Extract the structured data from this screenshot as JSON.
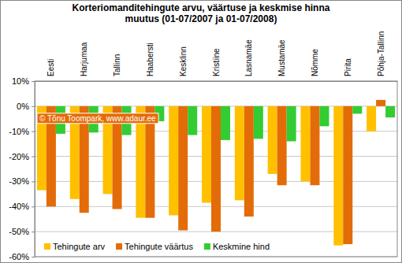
{
  "chart_data": {
    "type": "bar",
    "title": "Korteriomanditehingute arvu, väärtuse ja keskmise hinna muutus (01-07/2007 ja 01-07/2008)",
    "annotation": "© Tõnu Toompark, www.adaur.ee",
    "categories": [
      "Eesti",
      "Harjumaa",
      "Tallinn",
      "Haabersti",
      "Kesklinn",
      "Kristiine",
      "Lasnamäe",
      "Mustamäe",
      "Nõmme",
      "Pirita",
      "Põhja-Tallinn"
    ],
    "series": [
      {
        "name": "Tehingute arv",
        "color": "#ffc000",
        "values": [
          -33.5,
          -37,
          -35,
          -44.5,
          -43.5,
          -38.5,
          -37.5,
          -27,
          -30,
          -55.5,
          -10
        ]
      },
      {
        "name": "Tehingute väärtus",
        "color": "#e36c09",
        "values": [
          -40,
          -42.5,
          -41,
          -44.5,
          -49.5,
          -50,
          -44,
          -31.5,
          -31.5,
          -55,
          2.5
        ]
      },
      {
        "name": "Keskmine hind",
        "color": "#33cc33",
        "values": [
          -11,
          -10.5,
          -11.5,
          -6,
          -11.5,
          -13.5,
          -13,
          -14,
          -8,
          -3,
          -4.5
        ]
      }
    ],
    "ylim": [
      -60,
      10
    ],
    "yticks": [
      {
        "value": 10,
        "label": "10%"
      },
      {
        "value": 0,
        "label": "0%"
      },
      {
        "value": -10,
        "label": "-10%"
      },
      {
        "value": -20,
        "label": "-20%"
      },
      {
        "value": -30,
        "label": "-30%"
      },
      {
        "value": -40,
        "label": "-40%"
      },
      {
        "value": -50,
        "label": "-50%"
      },
      {
        "value": -60,
        "label": "-60%"
      }
    ],
    "grid": true,
    "legend": "bottom-left"
  }
}
